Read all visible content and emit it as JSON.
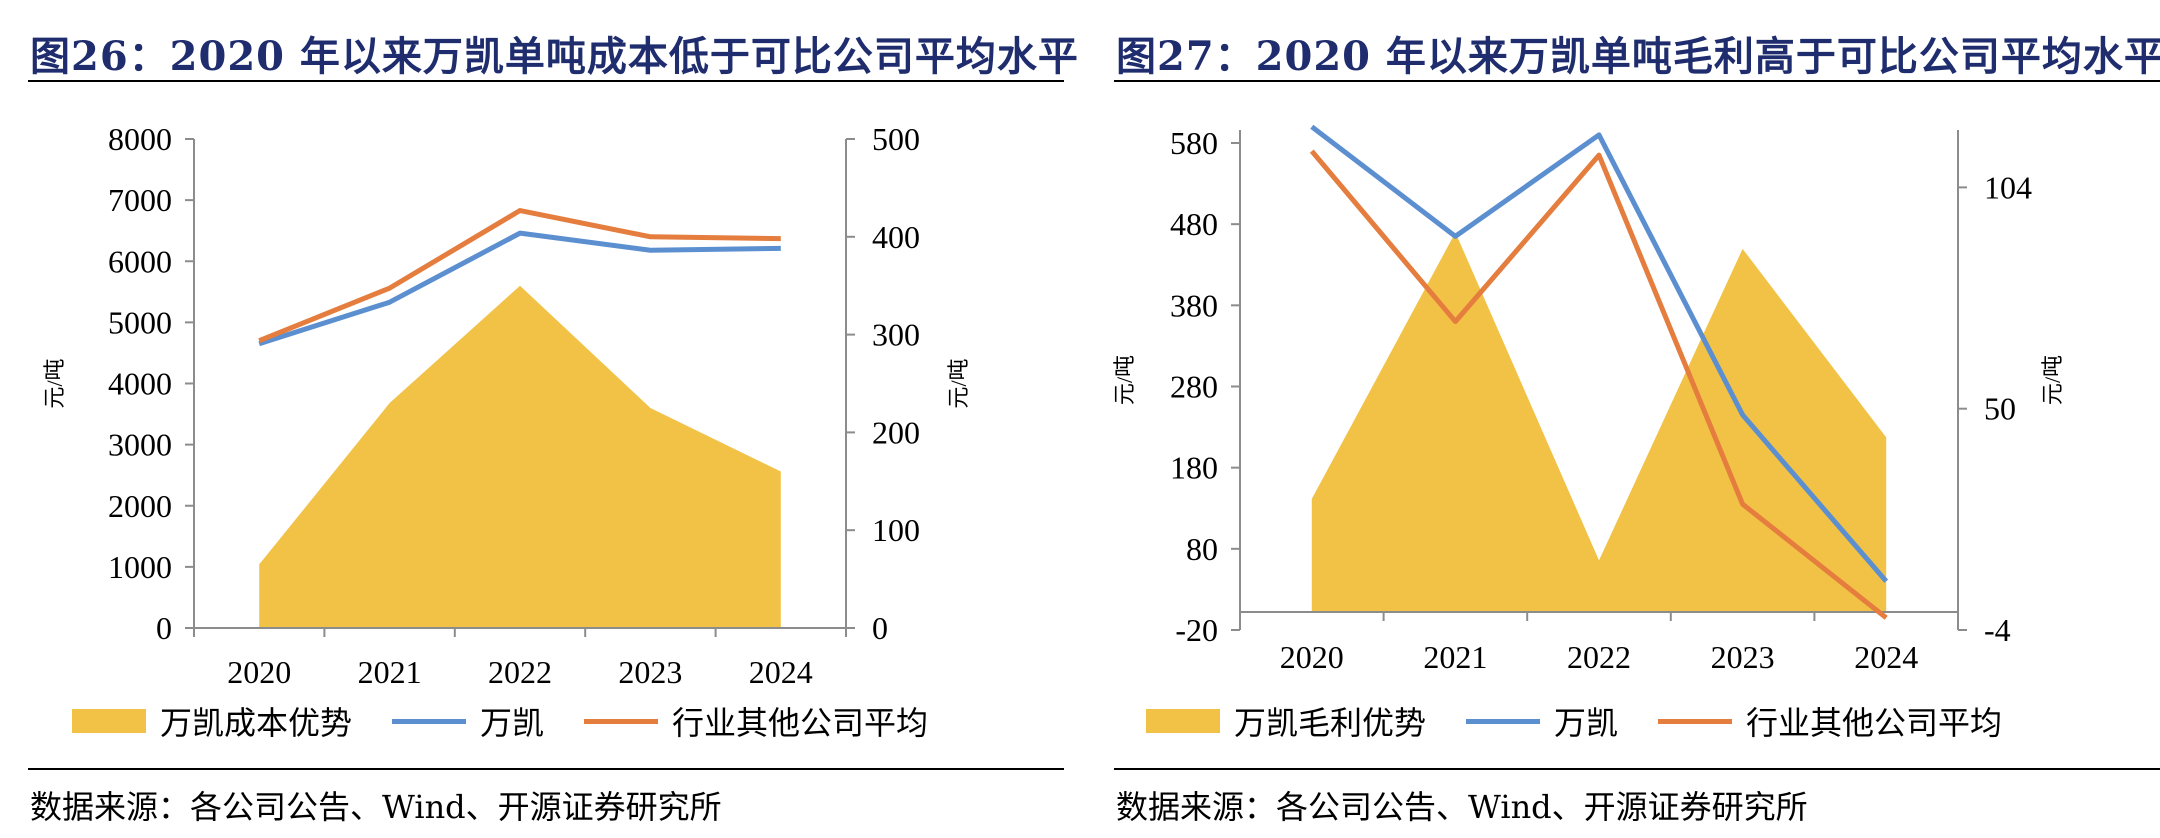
{
  "colors": {
    "area": "#F2C247",
    "wankai": "#5B8FD0",
    "industry": "#E47D3E",
    "title": "#1f2d6e"
  },
  "chart_data": [
    {
      "type": "line",
      "title": "图26：2020 年以来万凯单吨成本低于可比公司平均水平",
      "categories": [
        "2020",
        "2021",
        "2022",
        "2023",
        "2024"
      ],
      "ylabel": "元/吨",
      "y2label": "元/吨",
      "ylim": [
        0,
        8000
      ],
      "y2lim": [
        0,
        500
      ],
      "yticks": [
        0,
        1000,
        2000,
        3000,
        4000,
        5000,
        6000,
        7000,
        8000
      ],
      "y2ticks": [
        0,
        100,
        200,
        300,
        400,
        500
      ],
      "grid": false,
      "legend_position": "bottom",
      "series": [
        {
          "name": "万凯成本优势",
          "type": "area",
          "axis": "right",
          "values": [
            65,
            230,
            350,
            225,
            160
          ]
        },
        {
          "name": "万凯",
          "type": "line",
          "axis": "left",
          "values": [
            4650,
            5330,
            6460,
            6180,
            6210
          ]
        },
        {
          "name": "行业其他公司平均",
          "type": "line",
          "axis": "left",
          "values": [
            4700,
            5560,
            6830,
            6400,
            6370
          ]
        }
      ],
      "source": "数据来源：各公司公告、Wind、开源证券研究所"
    },
    {
      "type": "line",
      "title": "图27：2020 年以来万凯单吨毛利高于可比公司平均水平",
      "categories": [
        "2020",
        "2021",
        "2022",
        "2023",
        "2024"
      ],
      "ylabel": "元/吨",
      "y2label": "元/吨",
      "ylim": [
        -20,
        596
      ],
      "y2lim": [
        -4,
        118
      ],
      "yticks": [
        -20,
        80,
        180,
        280,
        380,
        480,
        580
      ],
      "y2ticks": [
        -4,
        50,
        104
      ],
      "grid": false,
      "legend_position": "bottom",
      "series": [
        {
          "name": "万凯毛利优势",
          "type": "area",
          "axis": "right",
          "values": [
            28,
            93,
            13,
            89,
            43
          ]
        },
        {
          "name": "万凯",
          "type": "line",
          "axis": "left",
          "values": [
            600,
            465,
            590,
            245,
            40
          ]
        },
        {
          "name": "行业其他公司平均",
          "type": "line",
          "axis": "left",
          "values": [
            570,
            360,
            565,
            135,
            -5
          ]
        }
      ],
      "source": "数据来源：各公司公告、Wind、开源证券研究所"
    }
  ]
}
